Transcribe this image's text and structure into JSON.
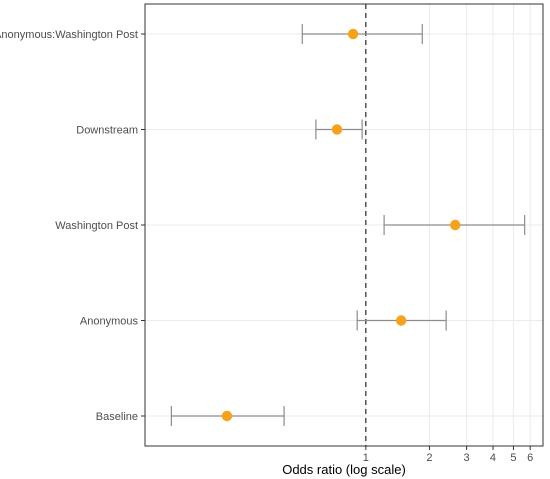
{
  "chart_data": {
    "type": "forest",
    "xlabel": "Odds ratio (log scale)",
    "x_scale": "log",
    "xlim": [
      0.09,
      6.9
    ],
    "x_ticks": [
      1,
      2,
      3,
      4,
      5,
      6
    ],
    "x_tick_labels": [
      "1",
      "2",
      "3",
      "4",
      "5",
      "6"
    ],
    "reference_line": 1,
    "reference_line_style": "dashed",
    "grid": true,
    "categories": [
      "Anonymous:Washington Post",
      "Downstream",
      "Washington Post",
      "Anonymous",
      "Baseline"
    ],
    "estimates": [
      0.87,
      0.73,
      2.65,
      1.47,
      0.22
    ],
    "lower": [
      0.5,
      0.58,
      1.22,
      0.91,
      0.12
    ],
    "upper": [
      1.85,
      0.96,
      5.65,
      2.4,
      0.41
    ],
    "colors": {
      "point": "#F7A21A",
      "errorbar": "#8c8c8c",
      "reference": "#000000",
      "grid": "#ebebeb",
      "panel_border": "#333333"
    }
  }
}
